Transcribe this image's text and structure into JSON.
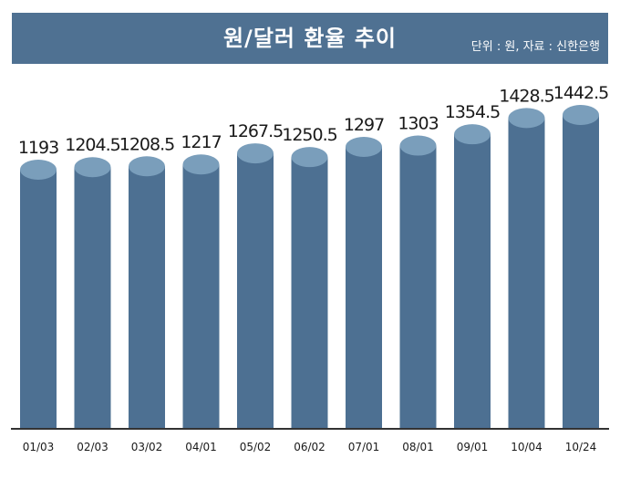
{
  "header": {
    "title": "원/달러 환율 추이",
    "source": "단위 : 원, 자료 : 신한은행"
  },
  "colors": {
    "header_bg": "#4f7192",
    "bar_body": "#4d7092",
    "bar_top": "#7a9ebb",
    "axis": "#333333",
    "text": "#1a1a1a"
  },
  "chart_data": {
    "type": "bar",
    "title": "원/달러 환율 추이",
    "unit": "원",
    "categories": [
      "01/03",
      "02/03",
      "03/02",
      "04/01",
      "05/02",
      "06/02",
      "07/01",
      "08/01",
      "09/01",
      "10/04",
      "10/24"
    ],
    "values": [
      1193,
      1204.5,
      1208.5,
      1217,
      1267.5,
      1250.5,
      1297,
      1303,
      1354.5,
      1428.5,
      1442.5
    ],
    "value_labels": [
      "1193",
      "1204.5",
      "1208.5",
      "1217",
      "1267.5",
      "1250.5",
      "1297",
      "1303",
      "1354.5",
      "1428.5",
      "1442.5"
    ],
    "grid": false,
    "legend": "none"
  }
}
